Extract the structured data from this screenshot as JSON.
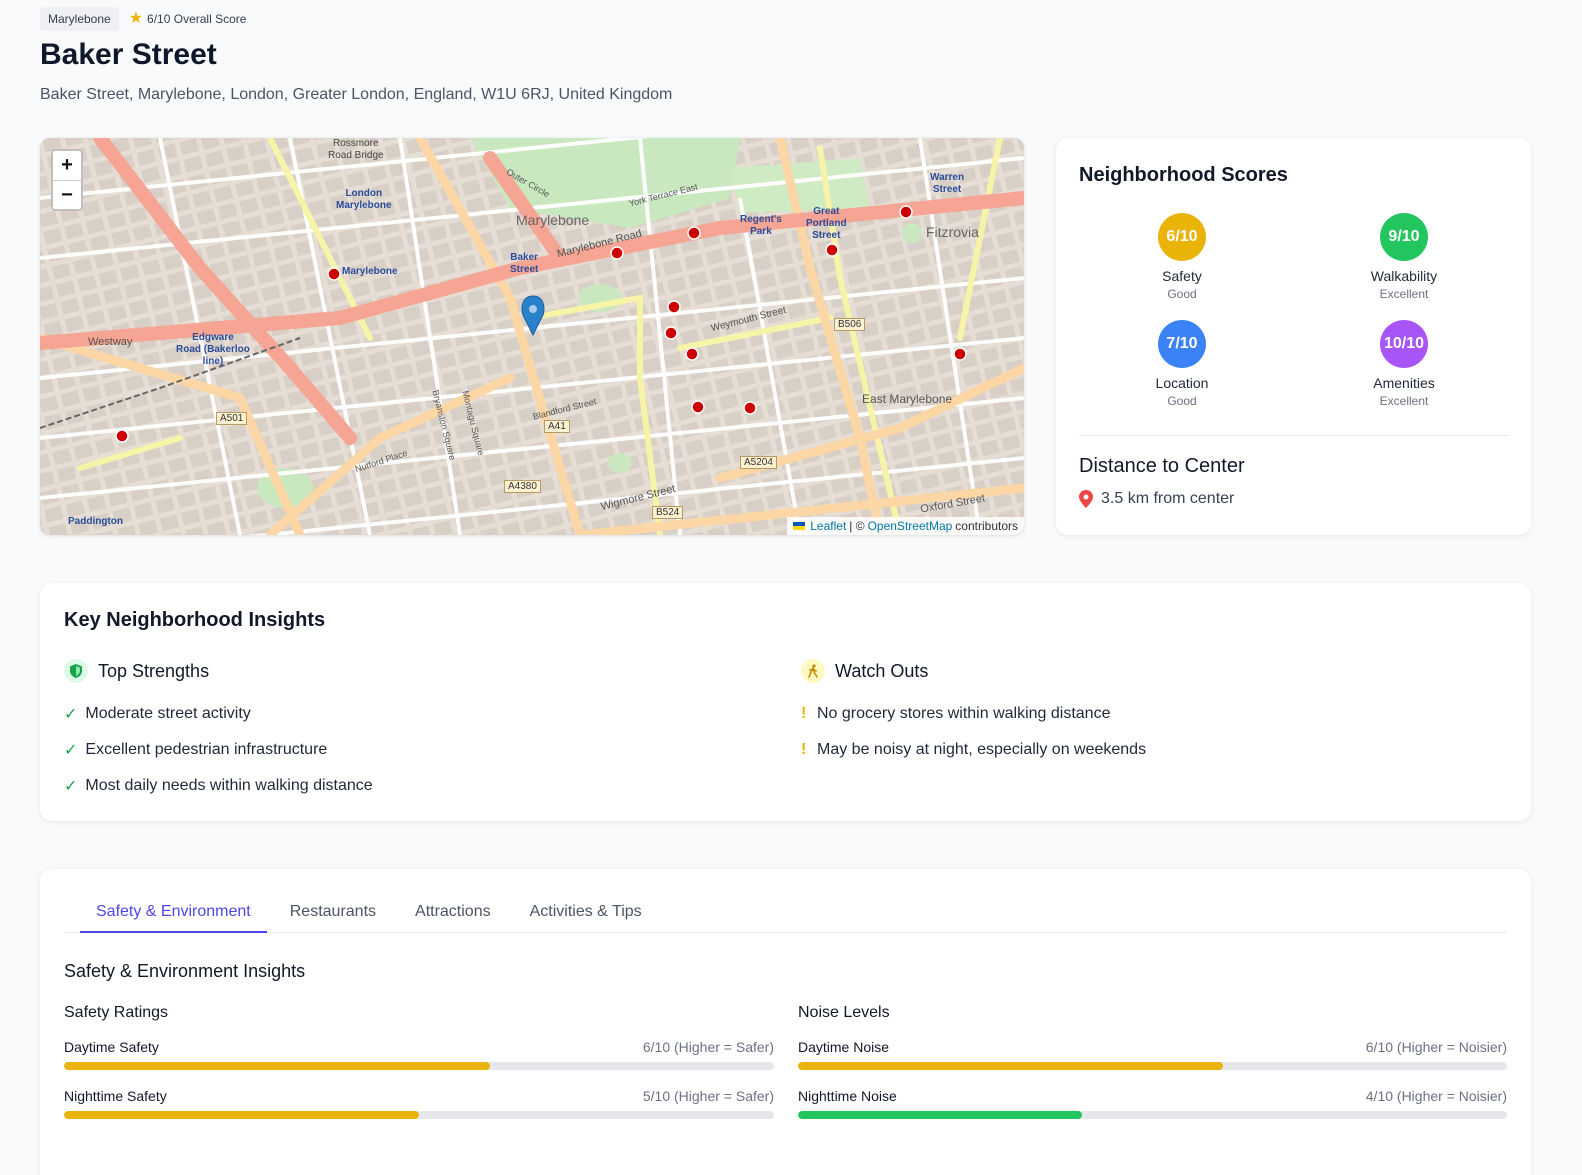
{
  "header": {
    "area_badge": "Marylebone",
    "overall_score": "6/10 Overall Score",
    "title": "Baker Street",
    "address": "Baker Street, Marylebone, London, Greater London, England, W1U 6RJ, United Kingdom"
  },
  "map": {
    "zoom_in": "+",
    "zoom_out": "−",
    "attribution": {
      "leaflet": "Leaflet",
      "sep": "| ©",
      "osm": "OpenStreetMap",
      "contributors": "contributors"
    },
    "labels": {
      "marylebone_area": "Marylebone",
      "fitzrovia": "Fitzrovia",
      "east_marylebone": "East Marylebone",
      "westway": "Westway",
      "marylebone_road": "Marylebone Road",
      "weymouth_street": "Weymouth Street",
      "wigmore_street": "Wigmore Street",
      "oxford_street": "Oxford Street",
      "blandford_street": "Blandford Street",
      "nutford_place": "Nutford Place",
      "bryanston_square": "Bryanston Square",
      "montagu_square": "Montagu Square",
      "outer_circle": "Outer Circle",
      "york_terrace": "York Terrace East",
      "baker_street_station": "Baker\nStreet",
      "marylebone_station": "Marylebone",
      "london_marylebone": "London\nMarylebone",
      "edgware_road": "Edgware\nRoad (Bakerloo\nline)",
      "regents_park": "Regent's\nPark",
      "great_portland": "Great\nPortland\nStreet",
      "warren_street": "Warren\nStreet",
      "paddington": "Paddington",
      "rossmore": "Rossmore\nRoad Bridge",
      "a501": "A501",
      "a41": "A41",
      "a4380": "A4380",
      "a5204": "A5204",
      "b506": "B506",
      "b524": "B524"
    }
  },
  "scores": {
    "title": "Neighborhood Scores",
    "items": [
      {
        "value": "6/10",
        "label": "Safety",
        "rating": "Good",
        "color": "#eab308"
      },
      {
        "value": "9/10",
        "label": "Walkability",
        "rating": "Excellent",
        "color": "#22c55e"
      },
      {
        "value": "7/10",
        "label": "Location",
        "rating": "Good",
        "color": "#3b82f6"
      },
      {
        "value": "10/10",
        "label": "Amenities",
        "rating": "Excellent",
        "color": "#a855f7"
      }
    ],
    "distance_title": "Distance to Center",
    "distance_text": "3.5 km from center"
  },
  "insights": {
    "title": "Key Neighborhood Insights",
    "strengths_title": "Top Strengths",
    "strengths": [
      "Moderate street activity",
      "Excellent pedestrian infrastructure",
      "Most daily needs within walking distance"
    ],
    "watch_title": "Watch Outs",
    "watch": [
      "No grocery stores within walking distance",
      "May be noisy at night, especially on weekends"
    ]
  },
  "tabs": {
    "items": [
      "Safety & Environment",
      "Restaurants",
      "Attractions",
      "Activities & Tips"
    ],
    "active": 0,
    "section_title": "Safety & Environment Insights",
    "safety_title": "Safety Ratings",
    "noise_title": "Noise Levels",
    "safety": [
      {
        "name": "Daytime Safety",
        "value": "6/10 (Higher = Safer)",
        "score": 6,
        "color": "#eab308"
      },
      {
        "name": "Nighttime Safety",
        "value": "5/10 (Higher = Safer)",
        "score": 5,
        "color": "#eab308"
      }
    ],
    "noise": [
      {
        "name": "Daytime Noise",
        "value": "6/10 (Higher = Noisier)",
        "score": 6,
        "color": "#eab308"
      },
      {
        "name": "Nighttime Noise",
        "value": "4/10 (Higher = Noisier)",
        "score": 4,
        "color": "#22c55e"
      }
    ]
  }
}
